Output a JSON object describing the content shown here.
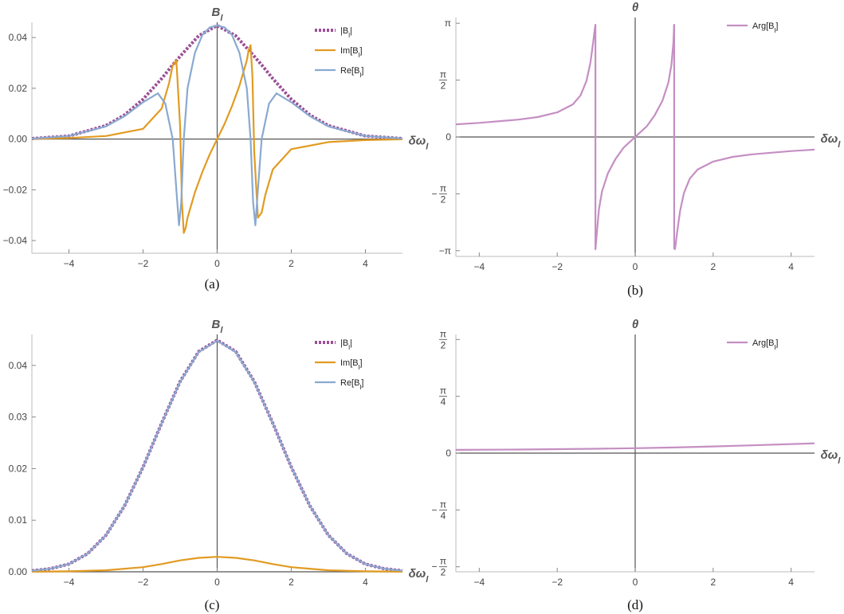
{
  "colors": {
    "abs": "#9b4f96",
    "imag": "#e19b22",
    "real": "#8aa9d0",
    "arg": "#c58fc3",
    "axis": "#555555"
  },
  "panels": [
    {
      "caption": "(a)",
      "xlabel": "δω",
      "xlabel_sub": "l",
      "ylabel": "B",
      "ylabel_sub": "l",
      "xticks": [
        "−4",
        "−2",
        "0",
        "2",
        "4"
      ],
      "yticks": [
        "−0.04",
        "−0.02",
        "0.00",
        "0.02",
        "0.04"
      ],
      "legend": [
        {
          "label": "|B",
          "sub": "l",
          "tail": "|"
        },
        {
          "label": "Im[B",
          "sub": "l",
          "tail": "]"
        },
        {
          "label": "Re[B",
          "sub": "l",
          "tail": "]"
        }
      ]
    },
    {
      "caption": "(b)",
      "xlabel": "δω",
      "xlabel_sub": "l",
      "ylabel": "θ",
      "xticks": [
        "−4",
        "−2",
        "0",
        "2",
        "4"
      ],
      "yticks": [
        "π",
        "π/2",
        "0",
        "−π/2",
        "−π"
      ],
      "legend": [
        {
          "label": "Arg[B",
          "sub": "l",
          "tail": "]"
        }
      ]
    },
    {
      "caption": "(c)",
      "xlabel": "δω",
      "xlabel_sub": "l",
      "ylabel": "B",
      "ylabel_sub": "l",
      "xticks": [
        "−4",
        "−2",
        "0",
        "2",
        "4"
      ],
      "yticks": [
        "0.04",
        "0.03",
        "0.02",
        "0.01",
        "0.00"
      ],
      "legend": [
        {
          "label": "|B",
          "sub": "l",
          "tail": "|"
        },
        {
          "label": "Im[B",
          "sub": "l",
          "tail": "]"
        },
        {
          "label": "Re[B",
          "sub": "l",
          "tail": "]"
        }
      ]
    },
    {
      "caption": "(d)",
      "xlabel": "δω",
      "xlabel_sub": "l",
      "ylabel": "θ",
      "xticks": [
        "−4",
        "−2",
        "0",
        "2",
        "4"
      ],
      "yticks": [
        "π/2",
        "π/4",
        "0",
        "−π/4",
        "−π/2"
      ],
      "legend": [
        {
          "label": "Arg[B",
          "sub": "l",
          "tail": "]"
        }
      ]
    }
  ],
  "chart_data": [
    {
      "type": "line",
      "panel": "a",
      "xlim": [
        -5,
        5
      ],
      "ylim": [
        -0.045,
        0.046
      ],
      "series": [
        {
          "name": "|Bl|",
          "style": "dotted",
          "x": [
            -5,
            -4,
            -3,
            -2.5,
            -2,
            -1.5,
            -1.2,
            -1,
            -0.5,
            0,
            0.5,
            1,
            1.2,
            1.5,
            2,
            2.5,
            3,
            4,
            5
          ],
          "y": [
            0.0002,
            0.0012,
            0.0053,
            0.0095,
            0.0157,
            0.0238,
            0.0292,
            0.0326,
            0.0407,
            0.0447,
            0.0407,
            0.0326,
            0.0292,
            0.0238,
            0.0157,
            0.0095,
            0.0053,
            0.0012,
            0.0002
          ]
        },
        {
          "name": "Im[Bl]",
          "x": [
            -5,
            -4,
            -3,
            -2,
            -1.5,
            -1.3,
            -1.2,
            -1.1,
            -1.0,
            -0.95,
            -0.9,
            -0.85,
            -0.8,
            -0.6,
            -0.4,
            -0.2,
            0,
            0.2,
            0.4,
            0.6,
            0.8,
            0.85,
            0.9,
            0.95,
            1.0,
            1.1,
            1.2,
            1.3,
            1.5,
            2,
            3,
            4,
            5
          ],
          "y": [
            0.0001,
            0.0004,
            0.0012,
            0.004,
            0.012,
            0.022,
            0.029,
            0.031,
            0.005,
            -0.025,
            -0.037,
            -0.035,
            -0.031,
            -0.021,
            -0.013,
            -0.006,
            0,
            0.006,
            0.013,
            0.021,
            0.031,
            0.035,
            0.037,
            0.025,
            -0.005,
            -0.031,
            -0.029,
            -0.022,
            -0.012,
            -0.004,
            -0.0012,
            -0.0004,
            -0.0001
          ]
        },
        {
          "name": "Re[Bl]",
          "x": [
            -5,
            -4,
            -3,
            -2.5,
            -2,
            -1.6,
            -1.4,
            -1.2,
            -1.1,
            -1.03,
            -0.97,
            -0.9,
            -0.8,
            -0.6,
            -0.4,
            -0.2,
            0,
            0.2,
            0.4,
            0.6,
            0.8,
            0.9,
            0.97,
            1.03,
            1.1,
            1.2,
            1.4,
            1.6,
            2,
            2.5,
            3,
            4,
            5
          ],
          "y": [
            0.0002,
            0.0012,
            0.005,
            0.009,
            0.0145,
            0.018,
            0.014,
            0.0,
            -0.02,
            -0.034,
            -0.025,
            0.0,
            0.02,
            0.034,
            0.041,
            0.044,
            0.0447,
            0.044,
            0.041,
            0.034,
            0.02,
            0.0,
            -0.025,
            -0.034,
            -0.02,
            0.0,
            0.014,
            0.018,
            0.0145,
            0.009,
            0.005,
            0.0012,
            0.0002
          ]
        }
      ]
    },
    {
      "type": "line",
      "panel": "b",
      "xlim": [
        -4.6,
        4.6
      ],
      "ylim": [
        -3.3,
        3.3
      ],
      "series": [
        {
          "name": "Arg[Bl]",
          "segments": [
            {
              "x": [
                -4.6,
                -4,
                -3,
                -2.5,
                -2,
                -1.6,
                -1.4,
                -1.25,
                -1.15,
                -1.08,
                -1.04,
                -1.02
              ],
              "y": [
                0.35,
                0.39,
                0.48,
                0.55,
                0.68,
                0.9,
                1.15,
                1.55,
                2.05,
                2.6,
                2.95,
                3.1
              ]
            },
            {
              "x": [
                -1.02,
                -0.98,
                -0.93,
                -0.85,
                -0.7,
                -0.5,
                -0.3,
                0,
                0.3,
                0.5,
                0.7,
                0.85,
                0.93,
                0.98,
                1.0
              ],
              "y": [
                -3.1,
                -2.6,
                -2.0,
                -1.5,
                -1.0,
                -0.6,
                -0.3,
                0,
                0.3,
                0.6,
                1.0,
                1.5,
                2.0,
                2.6,
                3.1
              ]
            },
            {
              "x": [
                1.02,
                1.04,
                1.08,
                1.15,
                1.25,
                1.4,
                1.6,
                2,
                2.5,
                3,
                4,
                4.6
              ],
              "y": [
                -3.1,
                -2.95,
                -2.6,
                -2.05,
                -1.55,
                -1.15,
                -0.9,
                -0.68,
                -0.55,
                -0.48,
                -0.39,
                -0.35
              ]
            }
          ]
        }
      ]
    },
    {
      "type": "line",
      "panel": "c",
      "xlim": [
        -5,
        5
      ],
      "ylim": [
        0,
        0.046
      ],
      "series": [
        {
          "name": "|Bl|",
          "style": "dotted",
          "x": [
            -5,
            -4.5,
            -4,
            -3.5,
            -3,
            -2.5,
            -2,
            -1.5,
            -1,
            -0.5,
            0,
            0.5,
            1,
            1.5,
            2,
            2.5,
            3,
            3.5,
            4,
            4.5,
            5
          ],
          "y": [
            0.0002,
            0.0006,
            0.0015,
            0.0035,
            0.0071,
            0.0128,
            0.0203,
            0.0288,
            0.0369,
            0.0427,
            0.0449,
            0.0427,
            0.0369,
            0.0288,
            0.0203,
            0.0128,
            0.0071,
            0.0035,
            0.0015,
            0.0006,
            0.0002
          ]
        },
        {
          "name": "Im[Bl]",
          "x": [
            -5,
            -4,
            -3,
            -2,
            -1.5,
            -1,
            -0.5,
            0,
            0.5,
            1,
            1.5,
            2,
            3,
            4,
            5
          ],
          "y": [
            2e-05,
            9e-05,
            0.0003,
            0.0009,
            0.0015,
            0.0022,
            0.0027,
            0.0029,
            0.0027,
            0.0022,
            0.0015,
            0.0009,
            0.0003,
            9e-05,
            2e-05
          ]
        },
        {
          "name": "Re[Bl]",
          "x": [
            -5,
            -4.5,
            -4,
            -3.5,
            -3,
            -2.5,
            -2,
            -1.5,
            -1,
            -0.5,
            0,
            0.5,
            1,
            1.5,
            2,
            2.5,
            3,
            3.5,
            4,
            4.5,
            5
          ],
          "y": [
            0.0002,
            0.0006,
            0.0015,
            0.0035,
            0.0071,
            0.0128,
            0.0203,
            0.0288,
            0.0368,
            0.0426,
            0.0448,
            0.0426,
            0.0368,
            0.0288,
            0.0203,
            0.0128,
            0.0071,
            0.0035,
            0.0015,
            0.0006,
            0.0002
          ]
        }
      ]
    },
    {
      "type": "line",
      "panel": "d",
      "xlim": [
        -4.6,
        4.6
      ],
      "ylim": [
        -1.64,
        1.64
      ],
      "series": [
        {
          "name": "Arg[Bl]",
          "x": [
            -4.6,
            -3,
            -2,
            -1,
            0,
            1,
            2,
            3,
            4.6
          ],
          "y": [
            0.045,
            0.05,
            0.055,
            0.06,
            0.068,
            0.078,
            0.092,
            0.108,
            0.135
          ]
        }
      ]
    }
  ]
}
